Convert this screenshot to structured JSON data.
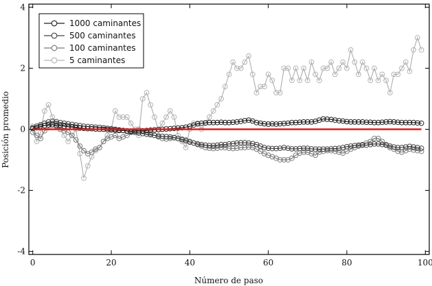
{
  "chart_data": {
    "type": "line",
    "title": "",
    "xlabel": "Número de paso",
    "ylabel": "Posición promedio",
    "xlim": [
      -1,
      101
    ],
    "ylim": [
      -4.1,
      4.1
    ],
    "xticks": [
      0,
      20,
      40,
      60,
      80,
      100
    ],
    "yticks": [
      -4,
      -2,
      0,
      2,
      4
    ],
    "grid": false,
    "legend_position": "top-left",
    "reference_line": {
      "y": 0,
      "color": "#e11b1b"
    },
    "series": [
      {
        "name": "1000 caminantes",
        "color": "#1e1e1e",
        "markers": "open-circle",
        "values": [
          0.02,
          0.05,
          0.1,
          0.12,
          0.14,
          0.15,
          0.13,
          0.12,
          0.1,
          0.08,
          0.07,
          0.05,
          0.04,
          0.03,
          0.02,
          0.02,
          0.01,
          0.0,
          0.0,
          -0.01,
          -0.02,
          -0.03,
          -0.04,
          -0.04,
          -0.05,
          -0.06,
          -0.06,
          -0.05,
          -0.05,
          -0.04,
          -0.03,
          -0.02,
          -0.01,
          0.0,
          0.01,
          0.02,
          0.03,
          0.04,
          0.05,
          0.07,
          0.1,
          0.14,
          0.18,
          0.2,
          0.21,
          0.22,
          0.22,
          0.22,
          0.23,
          0.22,
          0.22,
          0.23,
          0.24,
          0.26,
          0.28,
          0.3,
          0.27,
          0.22,
          0.2,
          0.18,
          0.17,
          0.18,
          0.17,
          0.18,
          0.19,
          0.2,
          0.22,
          0.22,
          0.23,
          0.24,
          0.24,
          0.24,
          0.26,
          0.3,
          0.34,
          0.33,
          0.32,
          0.3,
          0.28,
          0.27,
          0.25,
          0.24,
          0.24,
          0.24,
          0.24,
          0.23,
          0.23,
          0.22,
          0.22,
          0.23,
          0.24,
          0.25,
          0.24,
          0.23,
          0.22,
          0.22,
          0.22,
          0.22,
          0.21,
          0.2
        ]
      },
      {
        "name": "500 caminantes",
        "color": "#404040",
        "markers": "open-circle",
        "values": [
          0.05,
          0.1,
          0.15,
          0.2,
          0.24,
          0.26,
          0.25,
          0.22,
          0.2,
          0.18,
          0.16,
          0.14,
          0.12,
          0.1,
          0.09,
          0.08,
          0.07,
          0.06,
          0.05,
          0.03,
          0.02,
          0.0,
          -0.02,
          -0.04,
          -0.06,
          -0.08,
          -0.1,
          -0.12,
          -0.14,
          -0.16,
          -0.18,
          -0.2,
          -0.22,
          -0.23,
          -0.24,
          -0.25,
          -0.27,
          -0.3,
          -0.34,
          -0.38,
          -0.42,
          -0.45,
          -0.48,
          -0.5,
          -0.52,
          -0.53,
          -0.53,
          -0.52,
          -0.5,
          -0.5,
          -0.48,
          -0.47,
          -0.45,
          -0.44,
          -0.44,
          -0.45,
          -0.47,
          -0.5,
          -0.55,
          -0.6,
          -0.62,
          -0.63,
          -0.63,
          -0.62,
          -0.6,
          -0.62,
          -0.64,
          -0.64,
          -0.63,
          -0.62,
          -0.62,
          -0.64,
          -0.65,
          -0.65,
          -0.65,
          -0.65,
          -0.64,
          -0.63,
          -0.62,
          -0.6,
          -0.57,
          -0.55,
          -0.53,
          -0.52,
          -0.52,
          -0.52,
          -0.5,
          -0.48,
          -0.48,
          -0.5,
          -0.52,
          -0.55,
          -0.58,
          -0.6,
          -0.6,
          -0.58,
          -0.56,
          -0.58,
          -0.6,
          -0.62
        ]
      },
      {
        "name": "100 caminantes",
        "color": "#7a7a7a",
        "markers": "open-circle",
        "values": [
          -0.1,
          -0.2,
          -0.3,
          -0.05,
          0.05,
          0.15,
          0.1,
          0.0,
          -0.05,
          -0.1,
          -0.2,
          -0.35,
          -0.55,
          -0.7,
          -0.8,
          -0.75,
          -0.65,
          -0.6,
          -0.4,
          -0.3,
          -0.25,
          -0.2,
          -0.3,
          -0.25,
          -0.2,
          -0.1,
          -0.05,
          0.0,
          -0.05,
          -0.1,
          -0.15,
          -0.2,
          -0.25,
          -0.3,
          -0.32,
          -0.3,
          -0.28,
          -0.3,
          -0.32,
          -0.35,
          -0.4,
          -0.45,
          -0.5,
          -0.55,
          -0.6,
          -0.62,
          -0.63,
          -0.62,
          -0.6,
          -0.6,
          -0.62,
          -0.63,
          -0.62,
          -0.6,
          -0.6,
          -0.58,
          -0.6,
          -0.65,
          -0.72,
          -0.8,
          -0.85,
          -0.9,
          -0.95,
          -1.0,
          -1.0,
          -1.0,
          -0.95,
          -0.85,
          -0.78,
          -0.75,
          -0.75,
          -0.8,
          -0.85,
          -0.75,
          -0.72,
          -0.7,
          -0.7,
          -0.72,
          -0.75,
          -0.78,
          -0.72,
          -0.65,
          -0.6,
          -0.55,
          -0.5,
          -0.45,
          -0.4,
          -0.3,
          -0.3,
          -0.4,
          -0.5,
          -0.6,
          -0.65,
          -0.72,
          -0.75,
          -0.7,
          -0.65,
          -0.68,
          -0.7,
          -0.72
        ]
      },
      {
        "name": "5 caminantes",
        "color": "#b3b3b3",
        "markers": "open-circle",
        "values": [
          0.1,
          -0.4,
          -0.1,
          0.6,
          0.8,
          0.4,
          0.2,
          0.0,
          -0.2,
          -0.4,
          -0.2,
          0.0,
          -0.8,
          -1.6,
          -1.2,
          -0.9,
          -0.7,
          -0.6,
          -0.4,
          -0.2,
          0.0,
          0.6,
          0.4,
          0.4,
          0.4,
          0.2,
          0.0,
          -0.2,
          1.0,
          1.2,
          0.8,
          0.4,
          0.0,
          0.2,
          0.4,
          0.6,
          0.4,
          -0.2,
          -0.4,
          -0.6,
          0.0,
          0.2,
          0.2,
          0.0,
          0.2,
          0.4,
          0.6,
          0.8,
          1.0,
          1.4,
          1.8,
          2.2,
          2.0,
          2.0,
          2.2,
          2.4,
          1.8,
          1.2,
          1.4,
          1.4,
          1.8,
          1.6,
          1.2,
          1.2,
          2.0,
          2.0,
          1.6,
          2.0,
          1.6,
          2.0,
          1.6,
          2.2,
          1.8,
          1.6,
          2.0,
          2.0,
          2.2,
          1.8,
          2.0,
          2.2,
          2.0,
          2.6,
          2.2,
          1.8,
          2.2,
          2.0,
          1.6,
          2.0,
          1.6,
          1.8,
          1.6,
          1.2,
          1.8,
          1.8,
          2.0,
          2.2,
          1.9,
          2.6,
          3.0,
          2.6
        ]
      }
    ]
  }
}
